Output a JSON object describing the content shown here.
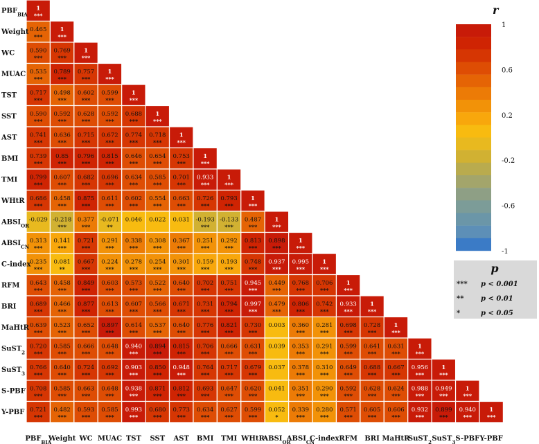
{
  "chart_data": {
    "type": "heatmap",
    "title": "",
    "variables": [
      {
        "base": "PBF",
        "sub": "BIA"
      },
      {
        "base": "Weight",
        "sub": ""
      },
      {
        "base": "WC",
        "sub": ""
      },
      {
        "base": "MUAC",
        "sub": ""
      },
      {
        "base": "TST",
        "sub": ""
      },
      {
        "base": "SST",
        "sub": ""
      },
      {
        "base": "AST",
        "sub": ""
      },
      {
        "base": "BMI",
        "sub": ""
      },
      {
        "base": "TMI",
        "sub": ""
      },
      {
        "base": "WHtR",
        "sub": ""
      },
      {
        "base": "ABSI",
        "sub": "OR"
      },
      {
        "base": "ABSI",
        "sub": "CN"
      },
      {
        "base": "C-index",
        "sub": ""
      },
      {
        "base": "RFM",
        "sub": ""
      },
      {
        "base": "BRI",
        "sub": ""
      },
      {
        "base": "MaHtR",
        "sub": ""
      },
      {
        "base": "SuST",
        "sub": "2"
      },
      {
        "base": "SuST",
        "sub": "3"
      },
      {
        "base": "S-PBF",
        "sub": ""
      },
      {
        "base": "Y-PBF",
        "sub": ""
      }
    ],
    "values": [
      [
        "1"
      ],
      [
        "0.465",
        "1"
      ],
      [
        "0.590",
        "0.769",
        "1"
      ],
      [
        "0.535",
        "0.789",
        "0.757",
        "1"
      ],
      [
        "0.717",
        "0.498",
        "0.602",
        "0.599",
        "1"
      ],
      [
        "0.590",
        "0.592",
        "0.628",
        "0.592",
        "0.688",
        "1"
      ],
      [
        "0.741",
        "0.636",
        "0.715",
        "0.672",
        "0.774",
        "0.718",
        "1"
      ],
      [
        "0.739",
        "0.85",
        "0.796",
        "0.815",
        "0.646",
        "0.654",
        "0.753",
        "1"
      ],
      [
        "0.799",
        "0.607",
        "0.682",
        "0.696",
        "0.634",
        "0.585",
        "0.701",
        "0.933",
        "1"
      ],
      [
        "0.686",
        "0.458",
        "0.875",
        "0.611",
        "0.602",
        "0.554",
        "0.663",
        "0.726",
        "0.793",
        "1"
      ],
      [
        "-0.029",
        "-0.218",
        "0.377",
        "-0.071",
        "0.046",
        "0.022",
        "0.031",
        "-0.193",
        "-0.133",
        "0.487",
        "1"
      ],
      [
        "0.313",
        "0.141",
        "0.721",
        "0.291",
        "0.338",
        "0.308",
        "0.367",
        "0.251",
        "0.292",
        "0.813",
        "0.898",
        "1"
      ],
      [
        "0.235",
        "0.081",
        "0.667",
        "0.224",
        "0.278",
        "0.254",
        "0.301",
        "0.159",
        "0.193",
        "0.748",
        "0.937",
        "0.995",
        "1"
      ],
      [
        "0.643",
        "0.458",
        "0.849",
        "0.603",
        "0.573",
        "0.522",
        "0.640",
        "0.702",
        "0.751",
        "0.945",
        "0.449",
        "0.768",
        "0.706",
        "1"
      ],
      [
        "0.689",
        "0.466",
        "0.877",
        "0.613",
        "0.607",
        "0.566",
        "0.671",
        "0.731",
        "0.794",
        "0.997",
        "0.479",
        "0.806",
        "0.742",
        "0.933",
        "1"
      ],
      [
        "0.639",
        "0.523",
        "0.652",
        "0.897",
        "0.614",
        "0.537",
        "0.640",
        "0.776",
        "0.821",
        "0.730",
        "0.003",
        "0.360",
        "0.281",
        "0.698",
        "0.728",
        "1"
      ],
      [
        "0.720",
        "0.585",
        "0.666",
        "0.648",
        "0.940",
        "0.894",
        "0.815",
        "0.706",
        "0.666",
        "0.631",
        "0.039",
        "0.353",
        "0.291",
        "0.599",
        "0.641",
        "0.631",
        "1"
      ],
      [
        "0.766",
        "0.640",
        "0.724",
        "0.692",
        "0.903",
        "0.850",
        "0.948",
        "0.764",
        "0.717",
        "0.679",
        "0.037",
        "0.378",
        "0.310",
        "0.649",
        "0.688",
        "0.667",
        "0.956",
        "1"
      ],
      [
        "0.708",
        "0.585",
        "0.663",
        "0.648",
        "0.938",
        "0.871",
        "0.812",
        "0.693",
        "0.647",
        "0.620",
        "0.041",
        "0.351",
        "0.290",
        "0.592",
        "0.628",
        "0.624",
        "0.988",
        "0.949",
        "1"
      ],
      [
        "0.721",
        "0.482",
        "0.593",
        "0.585",
        "0.993",
        "0.680",
        "0.773",
        "0.634",
        "0.627",
        "0.599",
        "0.052",
        "0.339",
        "0.280",
        "0.571",
        "0.605",
        "0.606",
        "0.932",
        "0.899",
        "0.940",
        "1"
      ]
    ],
    "stars": [
      [
        "***"
      ],
      [
        "***",
        "***"
      ],
      [
        "***",
        "***",
        "***"
      ],
      [
        "***",
        "***",
        "***",
        "***"
      ],
      [
        "***",
        "***",
        "***",
        "***",
        "***"
      ],
      [
        "***",
        "***",
        "***",
        "***",
        "***",
        "***"
      ],
      [
        "***",
        "***",
        "***",
        "***",
        "***",
        "***",
        "***"
      ],
      [
        "***",
        "***",
        "***",
        "***",
        "***",
        "***",
        "***",
        "***"
      ],
      [
        "***",
        "***",
        "***",
        "***",
        "***",
        "***",
        "***",
        "***",
        "***"
      ],
      [
        "***",
        "***",
        "***",
        "***",
        "***",
        "***",
        "***",
        "***",
        "***",
        "***"
      ],
      [
        "",
        "***",
        "***",
        "**",
        "",
        "",
        "",
        "***",
        "***",
        "***",
        "***"
      ],
      [
        "***",
        "***",
        "***",
        "***",
        "***",
        "***",
        "***",
        "***",
        "***",
        "***",
        "***",
        "***"
      ],
      [
        "***",
        "**",
        "***",
        "***",
        "***",
        "***",
        "***",
        "***",
        "***",
        "***",
        "***",
        "***",
        "***"
      ],
      [
        "***",
        "***",
        "***",
        "***",
        "***",
        "***",
        "***",
        "***",
        "***",
        "***",
        "***",
        "***",
        "***",
        "***"
      ],
      [
        "***",
        "***",
        "***",
        "***",
        "***",
        "***",
        "***",
        "***",
        "***",
        "***",
        "***",
        "***",
        "***",
        "***",
        "***"
      ],
      [
        "***",
        "***",
        "***",
        "***",
        "***",
        "***",
        "***",
        "***",
        "***",
        "***",
        "",
        "***",
        "***",
        "***",
        "***",
        "***"
      ],
      [
        "***",
        "***",
        "***",
        "***",
        "***",
        "***",
        "***",
        "***",
        "***",
        "***",
        "",
        "***",
        "***",
        "***",
        "***",
        "***",
        "***"
      ],
      [
        "***",
        "***",
        "***",
        "***",
        "***",
        "***",
        "***",
        "***",
        "***",
        "***",
        "",
        "***",
        "***",
        "***",
        "***",
        "***",
        "***",
        "***"
      ],
      [
        "***",
        "***",
        "***",
        "***",
        "***",
        "***",
        "***",
        "***",
        "***",
        "***",
        "",
        "***",
        "***",
        "***",
        "***",
        "***",
        "***",
        "***",
        "***"
      ],
      [
        "***",
        "***",
        "***",
        "***",
        "***",
        "***",
        "***",
        "***",
        "***",
        "***",
        "*",
        "***",
        "***",
        "***",
        "***",
        "***",
        "***",
        "***",
        "***",
        "***"
      ]
    ],
    "colorbar": {
      "title": "r",
      "range": [
        -1,
        1
      ],
      "tick_labels": [
        "1",
        "0.6",
        "0.2",
        "-0.2",
        "-0.6",
        "-1"
      ],
      "tick_values": [
        1,
        0.6,
        0.2,
        -0.2,
        -0.6,
        -1
      ],
      "colors": [
        "#3b7bc6",
        "#5d8fb7",
        "#6b96a8",
        "#7c9c98",
        "#8e9f85",
        "#a3a56b",
        "#b9ab4e",
        "#d1b132",
        "#e8b91f",
        "#f8bb10",
        "#f8a70c",
        "#f29208",
        "#ec7b06",
        "#e56405",
        "#de4d04",
        "#d63603",
        "#cf2403",
        "#c81b08"
      ]
    },
    "significance_legend": {
      "title": "p",
      "items": [
        {
          "mark": "***",
          "label": "p < 0.001"
        },
        {
          "mark": "**",
          "label": "p < 0.01"
        },
        {
          "mark": "*",
          "label": "p < 0.05"
        }
      ]
    }
  }
}
